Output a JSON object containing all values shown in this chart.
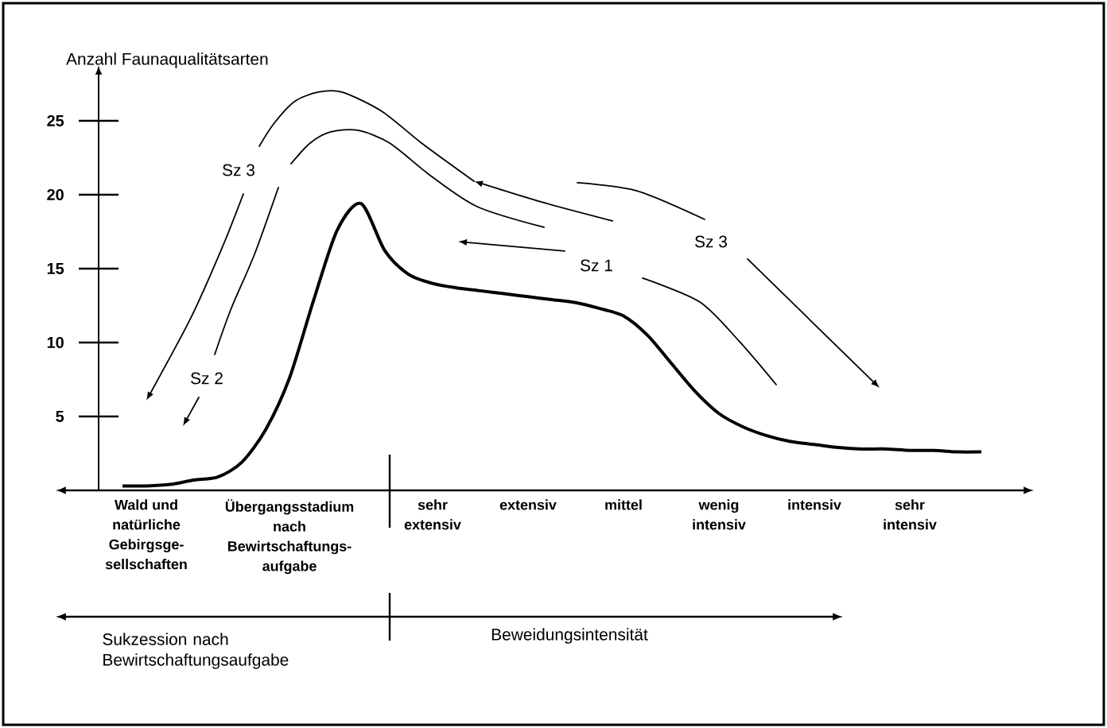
{
  "chart_data": {
    "type": "line",
    "ylabel": "Anzahl Faunaqualitätsarten",
    "categories": [
      null,
      "Wald und natürliche Gebirgsge-sellschaften",
      null,
      null,
      null,
      null,
      null,
      "Übergangsstadium nach Bewirtschaftungs-aufgabe",
      null,
      null,
      null,
      null,
      null,
      "sehr extensiv",
      null,
      null,
      null,
      "extensiv",
      null,
      null,
      null,
      "mittel",
      null,
      null,
      null,
      "wenig intensiv",
      null,
      null,
      null,
      "intensiv",
      null,
      null,
      null,
      "sehr intensiv",
      null,
      null,
      null
    ],
    "series": [
      {
        "color": "#000000",
        "values": [
          0.3,
          0.3,
          0.4,
          0.7,
          0.9,
          1.9,
          4.1,
          7.6,
          12.8,
          17.6,
          19.4,
          16.2,
          14.6,
          14.0,
          13.7,
          13.5,
          13.3,
          13.1,
          12.9,
          12.7,
          12.3,
          11.8,
          10.5,
          8.6,
          6.7,
          5.2,
          4.3,
          3.7,
          3.3,
          3.1,
          2.9,
          2.8,
          2.8,
          2.7,
          2.7,
          2.6,
          2.6
        ]
      }
    ],
    "ylim": [
      0,
      28
    ],
    "yticks": [
      5,
      10,
      15,
      20,
      25
    ],
    "line_style": "solid",
    "grid": false,
    "annotations": [
      "Sz 3",
      "Sz 2",
      "Sz 1",
      "Sz 3",
      "Sukzession nach Bewirtschaftungsaufgabe",
      "Beweidungsintensität"
    ]
  }
}
